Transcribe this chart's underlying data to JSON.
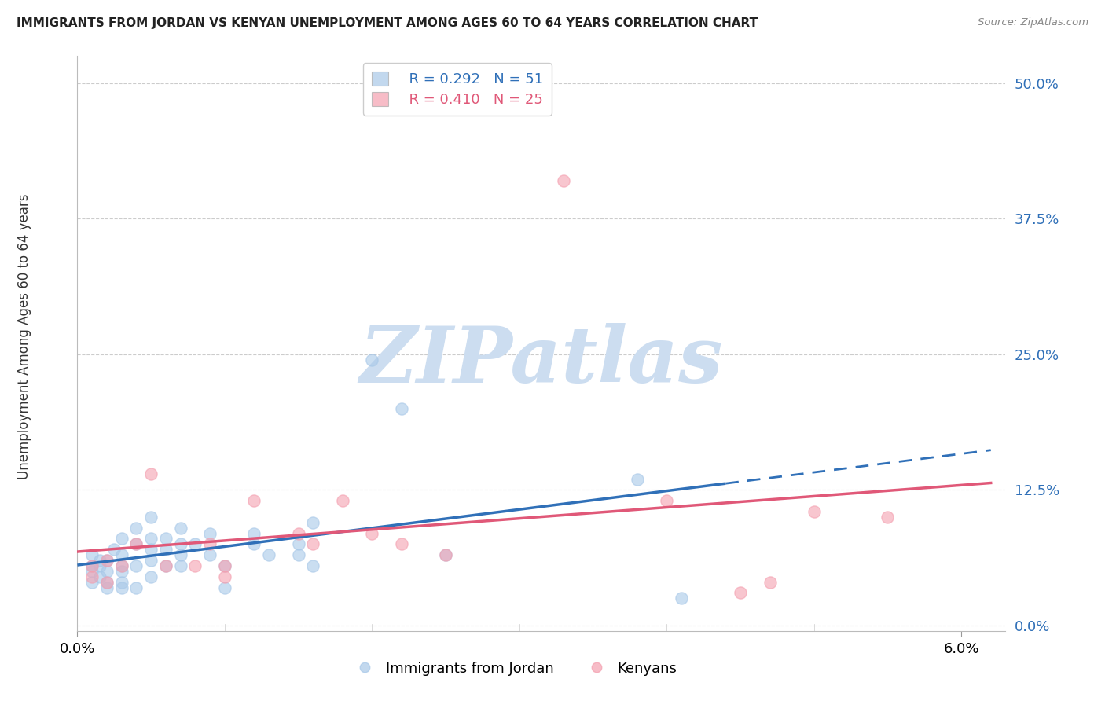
{
  "title": "IMMIGRANTS FROM JORDAN VS KENYAN UNEMPLOYMENT AMONG AGES 60 TO 64 YEARS CORRELATION CHART",
  "source": "Source: ZipAtlas.com",
  "ylabel_label": "Unemployment Among Ages 60 to 64 years",
  "xlim": [
    0.0,
    0.063
  ],
  "ylim": [
    -0.005,
    0.525
  ],
  "yticks": [
    0.0,
    0.125,
    0.25,
    0.375,
    0.5
  ],
  "ytick_labels": [
    "0.0%",
    "12.5%",
    "25.0%",
    "37.5%",
    "50.0%"
  ],
  "xticks": [
    0.0,
    0.06
  ],
  "xtick_labels": [
    "0.0%",
    "6.0%"
  ],
  "legend_r_blue": "R = 0.292",
  "legend_n_blue": "N = 51",
  "legend_r_pink": "R = 0.410",
  "legend_n_pink": "N = 25",
  "legend_label_blue": "Immigrants from Jordan",
  "legend_label_pink": "Kenyans",
  "blue_color": "#a8c8e8",
  "pink_color": "#f4a0b0",
  "blue_line_color": "#3070b8",
  "pink_line_color": "#e05878",
  "blue_scatter": [
    [
      0.001,
      0.055
    ],
    [
      0.001,
      0.065
    ],
    [
      0.001,
      0.04
    ],
    [
      0.001,
      0.05
    ],
    [
      0.0015,
      0.055
    ],
    [
      0.0015,
      0.045
    ],
    [
      0.0015,
      0.06
    ],
    [
      0.002,
      0.05
    ],
    [
      0.002,
      0.04
    ],
    [
      0.002,
      0.06
    ],
    [
      0.002,
      0.035
    ],
    [
      0.0025,
      0.07
    ],
    [
      0.003,
      0.055
    ],
    [
      0.003,
      0.065
    ],
    [
      0.003,
      0.04
    ],
    [
      0.003,
      0.05
    ],
    [
      0.003,
      0.08
    ],
    [
      0.003,
      0.035
    ],
    [
      0.004,
      0.055
    ],
    [
      0.004,
      0.075
    ],
    [
      0.004,
      0.09
    ],
    [
      0.004,
      0.035
    ],
    [
      0.005,
      0.06
    ],
    [
      0.005,
      0.045
    ],
    [
      0.005,
      0.08
    ],
    [
      0.005,
      0.07
    ],
    [
      0.005,
      0.1
    ],
    [
      0.006,
      0.055
    ],
    [
      0.006,
      0.07
    ],
    [
      0.006,
      0.08
    ],
    [
      0.007,
      0.065
    ],
    [
      0.007,
      0.055
    ],
    [
      0.007,
      0.075
    ],
    [
      0.007,
      0.09
    ],
    [
      0.008,
      0.075
    ],
    [
      0.009,
      0.085
    ],
    [
      0.009,
      0.065
    ],
    [
      0.01,
      0.055
    ],
    [
      0.01,
      0.035
    ],
    [
      0.012,
      0.085
    ],
    [
      0.012,
      0.075
    ],
    [
      0.013,
      0.065
    ],
    [
      0.015,
      0.075
    ],
    [
      0.015,
      0.065
    ],
    [
      0.016,
      0.055
    ],
    [
      0.016,
      0.095
    ],
    [
      0.02,
      0.245
    ],
    [
      0.022,
      0.2
    ],
    [
      0.025,
      0.065
    ],
    [
      0.038,
      0.135
    ],
    [
      0.041,
      0.025
    ]
  ],
  "pink_scatter": [
    [
      0.001,
      0.045
    ],
    [
      0.001,
      0.055
    ],
    [
      0.002,
      0.06
    ],
    [
      0.002,
      0.04
    ],
    [
      0.003,
      0.055
    ],
    [
      0.004,
      0.075
    ],
    [
      0.005,
      0.14
    ],
    [
      0.006,
      0.055
    ],
    [
      0.008,
      0.055
    ],
    [
      0.009,
      0.075
    ],
    [
      0.01,
      0.055
    ],
    [
      0.01,
      0.045
    ],
    [
      0.012,
      0.115
    ],
    [
      0.015,
      0.085
    ],
    [
      0.016,
      0.075
    ],
    [
      0.018,
      0.115
    ],
    [
      0.02,
      0.085
    ],
    [
      0.022,
      0.075
    ],
    [
      0.025,
      0.065
    ],
    [
      0.033,
      0.41
    ],
    [
      0.04,
      0.115
    ],
    [
      0.045,
      0.03
    ],
    [
      0.05,
      0.105
    ],
    [
      0.047,
      0.04
    ],
    [
      0.055,
      0.1
    ]
  ],
  "blue_line_xend_solid": 0.044,
  "blue_line_xend_dash": 0.062,
  "watermark_text": "ZIPatlas",
  "watermark_color": "#ccddf0",
  "background_color": "#ffffff",
  "grid_color": "#cccccc"
}
